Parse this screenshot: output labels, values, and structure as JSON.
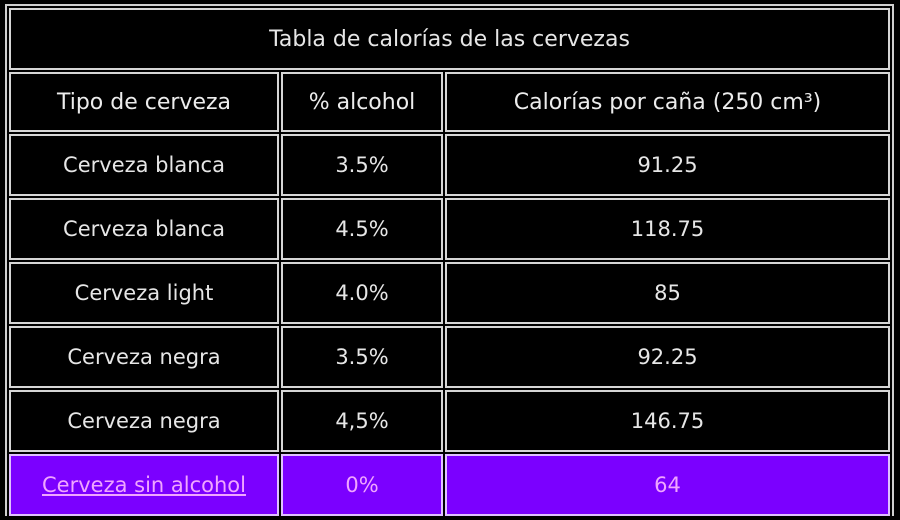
{
  "table": {
    "title": "Tabla de calorías de las cervezas",
    "headers": [
      "Tipo de cerveza",
      "% alcohol",
      "Calorías por caña (250 cm³)"
    ],
    "rows": [
      {
        "type": "Cerveza blanca",
        "alcohol": "3.5%",
        "calories": "91.25"
      },
      {
        "type": "Cerveza blanca",
        "alcohol": "4.5%",
        "calories": "118.75"
      },
      {
        "type": "Cerveza light",
        "alcohol": "4.0%",
        "calories": "85"
      },
      {
        "type": "Cerveza negra",
        "alcohol": "3.5%",
        "calories": "92.25"
      },
      {
        "type": "Cerveza negra",
        "alcohol": "4,5%",
        "calories": "146.75"
      },
      {
        "type": "Cerveza sin alcohol",
        "alcohol": "0%",
        "calories": "64",
        "highlighted": true,
        "link": true
      }
    ]
  },
  "colors": {
    "background": "#000000",
    "border": "#d6d6d6",
    "text": "#e6e6e6",
    "highlight_bg": "#7b00ff",
    "highlight_text": "#f0a6ff"
  }
}
